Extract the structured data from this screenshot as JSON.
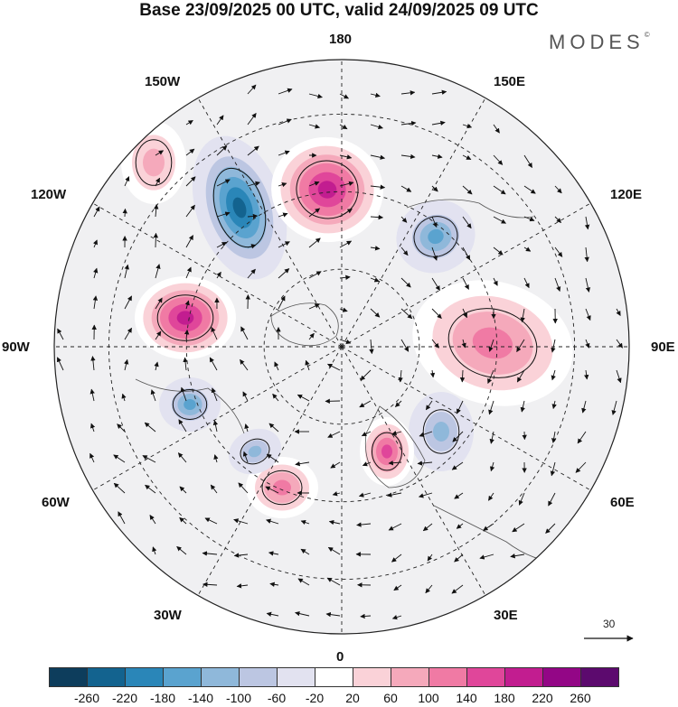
{
  "title": "Base 23/09/2025 00 UTC, valid 24/09/2025 09 UTC",
  "brand": {
    "name": "MODES",
    "mark": "©"
  },
  "longitude_labels": {
    "l180": "180",
    "l150e": "150E",
    "l120e": "120E",
    "l90e": "90E",
    "l60e": "60E",
    "l30e": "30E",
    "l0": "0",
    "l30w": "30W",
    "l60w": "60W",
    "l90w": "90W",
    "l120w": "120W",
    "l150w": "150W"
  },
  "wind_reference": {
    "value": "30"
  },
  "colorbar": {
    "ticks": [
      "-260",
      "-220",
      "-180",
      "-140",
      "-100",
      "-60",
      "-20",
      "20",
      "60",
      "100",
      "140",
      "180",
      "220",
      "260"
    ],
    "colors": [
      "#0d3d5c",
      "#13638f",
      "#2a86b8",
      "#5aa3cf",
      "#8fb8da",
      "#bcc6e2",
      "#e2e2f0",
      "#ffffff",
      "#fad2d8",
      "#f5a9bb",
      "#f07aa4",
      "#e0469a",
      "#c21d90",
      "#930686",
      "#5c0a6e"
    ]
  },
  "anomaly_centers": [
    {
      "kind": "negative",
      "value": -230
    },
    {
      "kind": "positive",
      "value": 190
    },
    {
      "kind": "positive",
      "value": 215
    },
    {
      "kind": "negative",
      "value": -170
    },
    {
      "kind": "negative",
      "value": -160
    },
    {
      "kind": "positive",
      "value": 110
    },
    {
      "kind": "negative",
      "value": -120
    },
    {
      "kind": "positive",
      "value": 160
    },
    {
      "kind": "positive",
      "value": 130
    },
    {
      "kind": "negative",
      "value": -130
    },
    {
      "kind": "positive",
      "value": 90
    }
  ]
}
